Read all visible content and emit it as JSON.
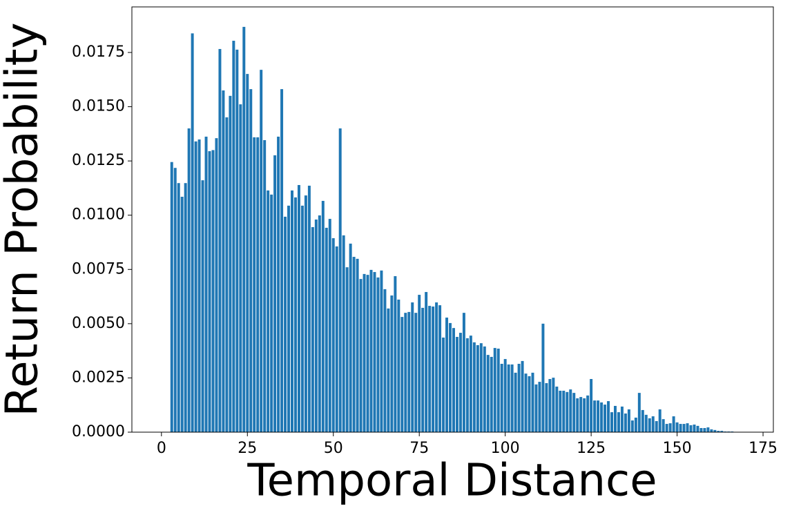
{
  "chart_data": {
    "type": "bar",
    "x_label": "Temporal Distance",
    "y_label": "Return Probability",
    "color": "#1f77b4",
    "bar_width": 0.8,
    "x": [
      3,
      4,
      5,
      6,
      7,
      8,
      9,
      10,
      11,
      12,
      13,
      14,
      15,
      16,
      17,
      18,
      19,
      20,
      21,
      22,
      23,
      24,
      25,
      26,
      27,
      28,
      29,
      30,
      31,
      32,
      33,
      34,
      35,
      36,
      37,
      38,
      39,
      40,
      41,
      42,
      43,
      44,
      45,
      46,
      47,
      48,
      49,
      50,
      51,
      52,
      53,
      54,
      55,
      56,
      57,
      58,
      59,
      60,
      61,
      62,
      63,
      64,
      65,
      66,
      67,
      68,
      69,
      70,
      71,
      72,
      73,
      74,
      75,
      76,
      77,
      78,
      79,
      80,
      81,
      82,
      83,
      84,
      85,
      86,
      87,
      88,
      89,
      90,
      91,
      92,
      93,
      94,
      95,
      96,
      97,
      98,
      99,
      100,
      101,
      102,
      103,
      104,
      105,
      106,
      107,
      108,
      109,
      110,
      111,
      112,
      113,
      114,
      115,
      116,
      117,
      118,
      119,
      120,
      121,
      122,
      123,
      124,
      125,
      126,
      127,
      128,
      129,
      130,
      131,
      132,
      133,
      134,
      135,
      136,
      137,
      138,
      139,
      140,
      141,
      142,
      143,
      144,
      145,
      146,
      147,
      148,
      149,
      150,
      151,
      152,
      153,
      154,
      155,
      156,
      157,
      158,
      159,
      160,
      161,
      162,
      163,
      164,
      165,
      166
    ],
    "values": [
      0.01245,
      0.01218,
      0.01148,
      0.01085,
      0.01148,
      0.014,
      0.01838,
      0.0134,
      0.01349,
      0.01161,
      0.01362,
      0.01295,
      0.013,
      0.01355,
      0.01766,
      0.01575,
      0.01451,
      0.0155,
      0.01804,
      0.01763,
      0.01511,
      0.01868,
      0.01651,
      0.01581,
      0.01359,
      0.01359,
      0.0167,
      0.01346,
      0.01114,
      0.01095,
      0.01276,
      0.01362,
      0.01581,
      0.00993,
      0.01044,
      0.01114,
      0.01082,
      0.01139,
      0.01044,
      0.01091,
      0.01136,
      0.00945,
      0.0098,
      0.00999,
      0.01066,
      0.00942,
      0.00983,
      0.00894,
      0.00856,
      0.014,
      0.00907,
      0.0076,
      0.00869,
      0.00808,
      0.00799,
      0.00706,
      0.00729,
      0.00725,
      0.00748,
      0.00738,
      0.00713,
      0.00745,
      0.00659,
      0.0057,
      0.0063,
      0.00719,
      0.00611,
      0.00531,
      0.0055,
      0.00554,
      0.00598,
      0.0055,
      0.00633,
      0.00573,
      0.00646,
      0.00582,
      0.00579,
      0.00598,
      0.00585,
      0.00436,
      0.00528,
      0.00503,
      0.0048,
      0.00439,
      0.00458,
      0.0055,
      0.00433,
      0.00445,
      0.00414,
      0.00401,
      0.0041,
      0.00395,
      0.00356,
      0.00347,
      0.00388,
      0.00385,
      0.00315,
      0.00337,
      0.00312,
      0.00312,
      0.00274,
      0.00315,
      0.00328,
      0.0027,
      0.00258,
      0.00274,
      0.0022,
      0.00232,
      0.005,
      0.00226,
      0.00245,
      0.00251,
      0.0021,
      0.00191,
      0.00191,
      0.00185,
      0.00197,
      0.00181,
      0.00156,
      0.00162,
      0.00156,
      0.00169,
      0.00245,
      0.00146,
      0.00146,
      0.00137,
      0.00127,
      0.00143,
      0.00092,
      0.00121,
      0.00092,
      0.00118,
      0.00086,
      0.00105,
      0.00054,
      0.00067,
      0.00181,
      0.00102,
      0.0008,
      0.00064,
      0.00073,
      0.00051,
      0.00105,
      0.0006,
      0.00038,
      0.00041,
      0.00073,
      0.00045,
      0.00038,
      0.00038,
      0.00041,
      0.00032,
      0.00035,
      0.00029,
      0.00019,
      0.00019,
      0.00022,
      0.00013,
      0.0001,
      6e-05,
      6e-05,
      3e-05,
      3e-05,
      3e-05
    ],
    "xlim": [
      -8.6,
      178.0
    ],
    "ylim": [
      0,
      0.0196
    ],
    "xticks": [
      0,
      25,
      50,
      75,
      100,
      125,
      150,
      175
    ],
    "yticks": [
      {
        "value": 0,
        "label": "0.0000"
      },
      {
        "value": 0.0025,
        "label": "0.0025"
      },
      {
        "value": 0.005,
        "label": "0.0050"
      },
      {
        "value": 0.0075,
        "label": "0.0075"
      },
      {
        "value": 0.01,
        "label": "0.0100"
      },
      {
        "value": 0.0125,
        "label": "0.0125"
      },
      {
        "value": 0.015,
        "label": "0.0150"
      },
      {
        "value": 0.0175,
        "label": "0.0175"
      }
    ]
  }
}
